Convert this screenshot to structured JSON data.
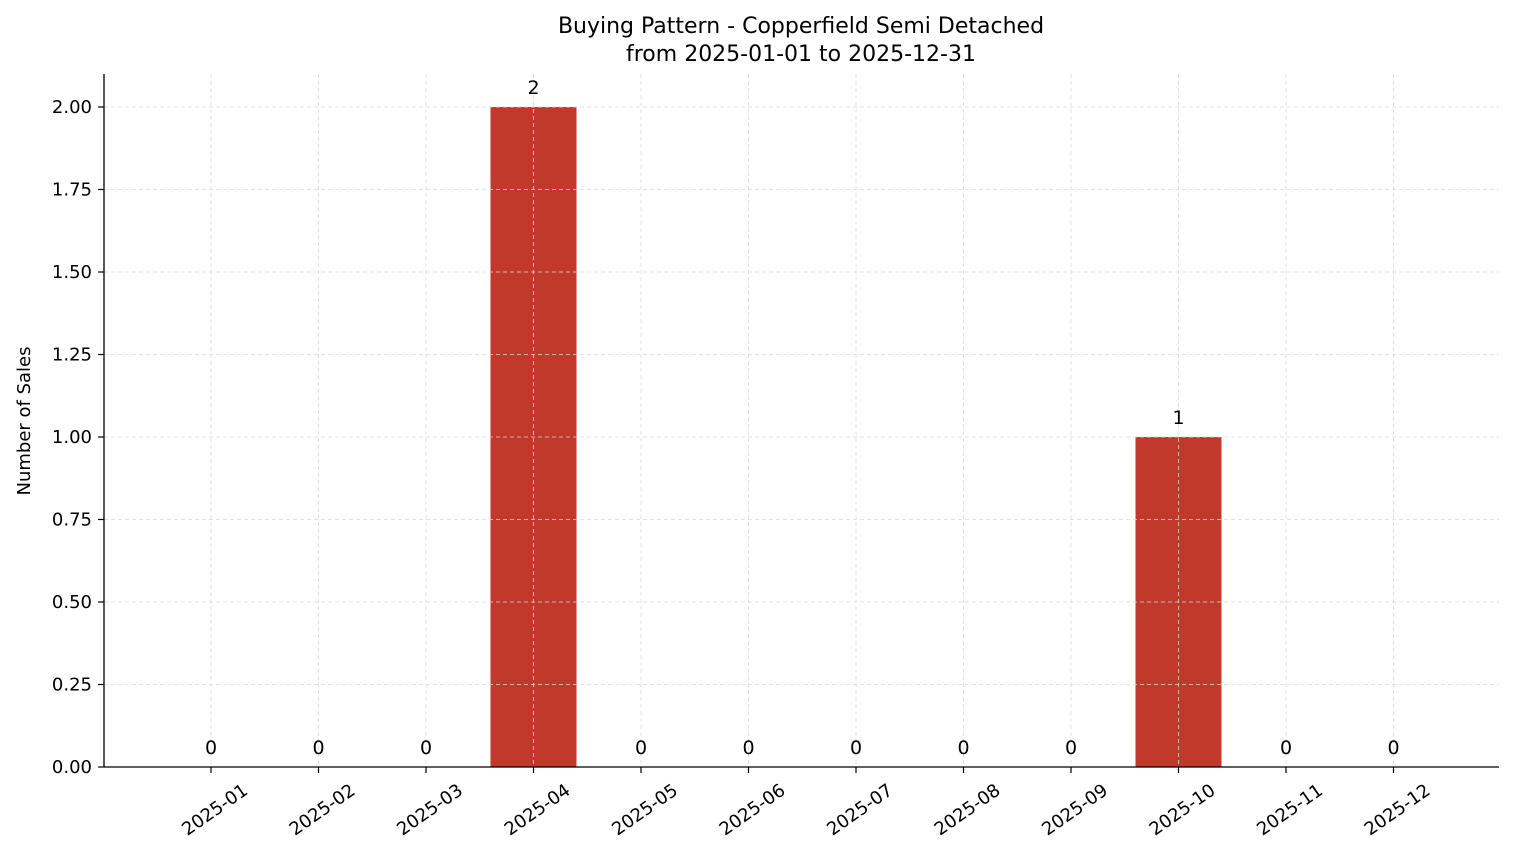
{
  "chart_data": {
    "type": "bar",
    "title": "Buying Pattern - Copperfield Semi Detached",
    "subtitle": "from 2025-01-01 to 2025-12-31",
    "xlabel": "",
    "ylabel": "Number of Sales",
    "categories": [
      "2025-01",
      "2025-02",
      "2025-03",
      "2025-04",
      "2025-05",
      "2025-06",
      "2025-07",
      "2025-08",
      "2025-09",
      "2025-10",
      "2025-11",
      "2025-12"
    ],
    "values": [
      0,
      0,
      0,
      2,
      0,
      0,
      0,
      0,
      0,
      1,
      0,
      0
    ],
    "data_labels": [
      "0",
      "0",
      "0",
      "2",
      "0",
      "0",
      "0",
      "0",
      "0",
      "1",
      "0",
      "0"
    ],
    "ylim": [
      0,
      2.1
    ],
    "yticks": [
      0,
      0.25,
      0.5,
      0.75,
      1.0,
      1.25,
      1.5,
      1.75,
      2.0
    ],
    "ytick_labels": [
      "0.00",
      "0.25",
      "0.50",
      "0.75",
      "1.00",
      "1.25",
      "1.50",
      "1.75",
      "2.00"
    ],
    "grid": true,
    "colors": {
      "bar": "#c0392b",
      "grid": "#d9d9d9",
      "axis": "#000000"
    }
  }
}
